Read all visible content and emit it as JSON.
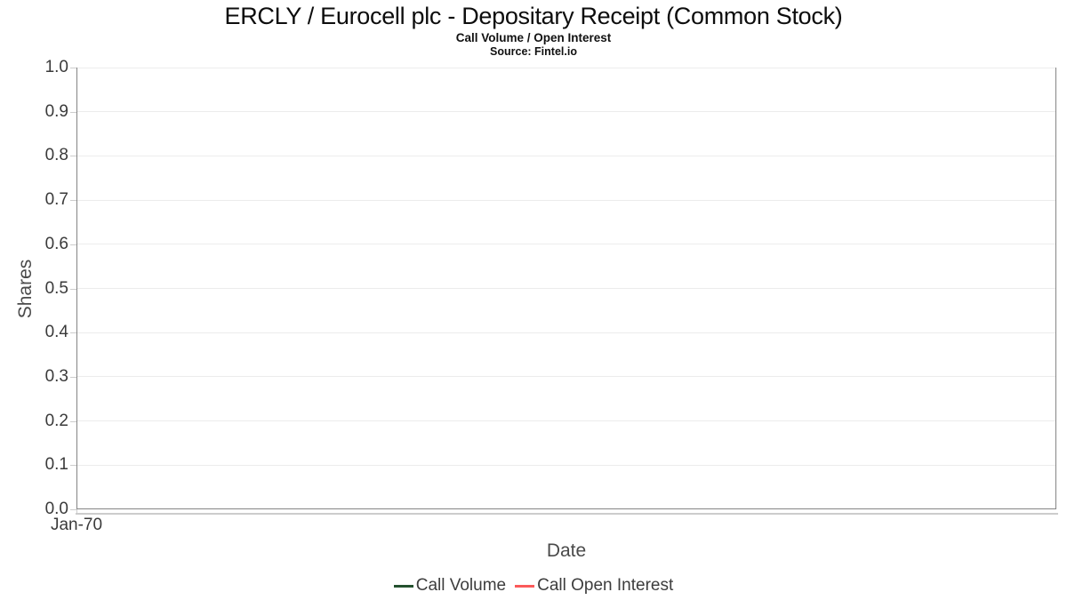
{
  "header": {
    "title": "ERCLY / Eurocell plc - Depositary Receipt (Common Stock)",
    "subtitle": "Call Volume / Open Interest",
    "source": "Source: Fintel.io"
  },
  "chart_data": {
    "type": "line",
    "title": "ERCLY / Eurocell plc - Depositary Receipt (Common Stock)",
    "subtitle": "Call Volume / Open Interest",
    "source": "Source: Fintel.io",
    "xlabel": "Date",
    "ylabel": "Shares",
    "ylim": [
      0.0,
      1.0
    ],
    "yticks": [
      0.0,
      0.1,
      0.2,
      0.3,
      0.4,
      0.5,
      0.6,
      0.7,
      0.8,
      0.9,
      1.0
    ],
    "xticks": [
      "Jan-70"
    ],
    "grid": "horizontal",
    "legend_position": "bottom",
    "series": [
      {
        "name": "Call Volume",
        "color": "#24512f",
        "values": []
      },
      {
        "name": "Call Open Interest",
        "color": "#fb5a5a",
        "values": []
      }
    ],
    "note_empty": "No data points plotted; chart area is empty"
  },
  "colors": {
    "plot_border": "#858585",
    "gridline": "#ececec",
    "tick": "#cccccc",
    "tick_label": "#3a3a3a",
    "axis_title": "#4a4a4a",
    "legend_text": "#3d3d3d",
    "background": "#ffffff"
  }
}
